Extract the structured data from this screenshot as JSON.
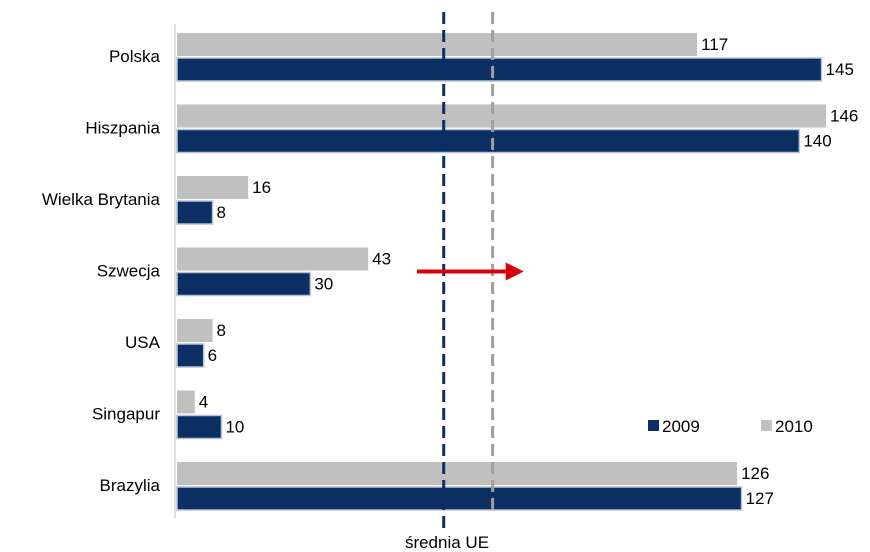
{
  "chart_data": {
    "type": "bar",
    "orientation": "horizontal",
    "categories": [
      "Polska",
      "Hiszpania",
      "Wielka Brytania",
      "Szwecja",
      "USA",
      "Singapur",
      "Brazylia"
    ],
    "series": [
      {
        "name": "2010",
        "values": [
          117,
          146,
          16,
          43,
          8,
          4,
          126
        ],
        "color": "#c0c0c0"
      },
      {
        "name": "2009",
        "values": [
          145,
          140,
          8,
          30,
          6,
          10,
          127
        ],
        "color": "#0b2f63"
      }
    ],
    "xlim": [
      0,
      146
    ],
    "reference_lines": [
      {
        "series": "2009",
        "value": 60,
        "color": "#0b2f63",
        "style": "dashed"
      },
      {
        "series": "2010",
        "value": 71,
        "color": "#a0a0a0",
        "style": "dashed"
      }
    ],
    "reference_label": "średnia UE",
    "annotation": {
      "type": "arrow",
      "color": "#d9000d",
      "from_value": 54,
      "to_value": 78,
      "category": "Szwecja"
    },
    "legend": {
      "placement": "bottom-right",
      "order": [
        "2009",
        "2010"
      ]
    },
    "grid": false
  }
}
